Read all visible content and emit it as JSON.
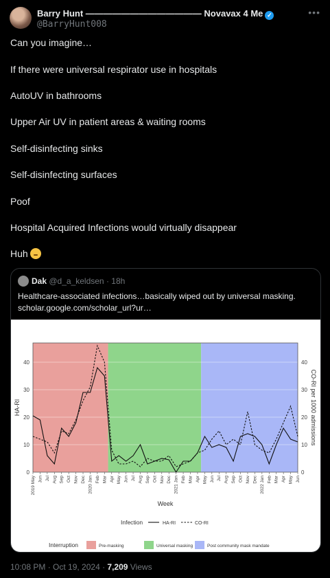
{
  "author": {
    "name": "Barry Hunt ————————————— Novavax 4 Me",
    "handle": "@BarryHunt008"
  },
  "tweet": {
    "paragraphs": [
      "Can you imagine…",
      "If there were universal respirator use in hospitals",
      "AutoUV in bathrooms",
      "Upper Air UV in patient areas & waiting rooms",
      "Self-disinfecting sinks",
      "Self-disinfecting surfaces",
      "Poof",
      "Hospital Acquired Infections would virtually disappear",
      "Huh"
    ]
  },
  "quote": {
    "name": "Dak",
    "handle": "@d_a_keldsen",
    "time": "18h",
    "line1": "Healthcare-associated infections…basically wiped out by universal masking.",
    "line2": "scholar.google.com/scholar_url?ur…"
  },
  "footer": {
    "time": "10:08 PM · Oct 19, 2024 · ",
    "views_count": "7,209",
    "views_label": " Views"
  },
  "chart_data": {
    "type": "line",
    "xlabel": "Week",
    "ylabel_left": "HA-RI",
    "ylabel_right": "CO-RI per 1000 admissions",
    "ylim": [
      0,
      47
    ],
    "yticks": [
      0,
      10,
      20,
      30,
      40
    ],
    "x": [
      "2019 May",
      "Jun",
      "Jul",
      "Aug",
      "Sep",
      "Oct",
      "Nov",
      "Dec",
      "2020 Jan",
      "Feb",
      "Mar",
      "Apr",
      "May",
      "Jun",
      "Jul",
      "Aug",
      "Sep",
      "Oct",
      "Nov",
      "Dec",
      "2021 Jan",
      "Feb",
      "Mar",
      "Apr",
      "May",
      "Jun",
      "Jul",
      "Aug",
      "Sep",
      "Oct",
      "Nov",
      "Dec",
      "2022 Jan",
      "Feb",
      "Mar",
      "Apr",
      "May",
      "Jun"
    ],
    "series": [
      {
        "name": "HA-RI",
        "style": "solid",
        "values": [
          20.5,
          19,
          6,
          3,
          16,
          13,
          18,
          29,
          29,
          38,
          35,
          4,
          6,
          4,
          6,
          10,
          3,
          4,
          5,
          4.5,
          0,
          4,
          4,
          7,
          13,
          9,
          10,
          9,
          4,
          13,
          14,
          13,
          10,
          3,
          10,
          16,
          12,
          11
        ]
      },
      {
        "name": "CO-RI",
        "style": "dashed",
        "values": [
          13,
          12,
          11,
          7,
          15,
          14,
          19,
          26,
          31,
          46,
          40,
          8,
          3,
          3,
          4,
          2,
          5,
          4,
          4,
          6,
          2,
          3,
          4,
          7,
          8,
          12,
          15,
          10,
          12,
          10,
          22,
          10,
          8,
          7,
          12,
          18,
          24,
          13
        ]
      }
    ],
    "legend_title": "Infection",
    "interruption": {
      "title": "Interruption",
      "bands": [
        {
          "label": "Pre-masking",
          "color": "#e9a09c",
          "from": 0,
          "to": 10.5
        },
        {
          "label": "Universal masking",
          "color": "#8fd58b",
          "from": 10.5,
          "to": 23.5
        },
        {
          "label": "Post community mask mandate",
          "color": "#a9b7f7",
          "from": 23.5,
          "to": 37
        }
      ]
    }
  }
}
